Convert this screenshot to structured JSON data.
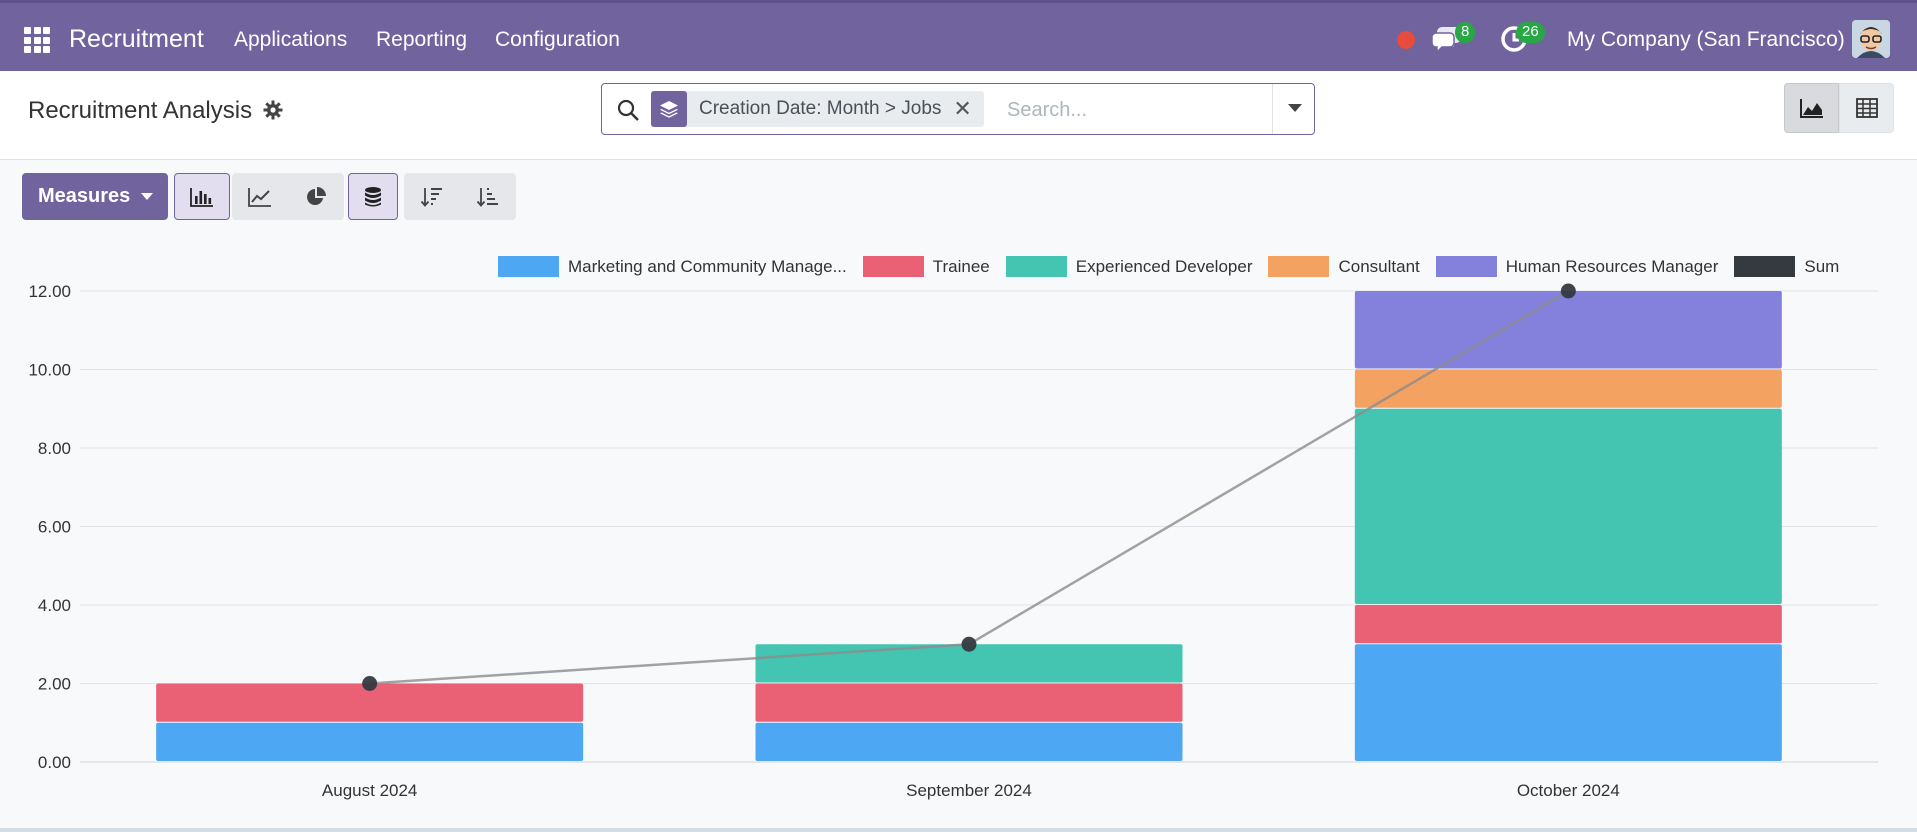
{
  "nav": {
    "brand": "Recruitment",
    "menu": [
      "Applications",
      "Reporting",
      "Configuration"
    ],
    "messages_count": "8",
    "activities_count": "26",
    "company": "My Company (San Francisco)"
  },
  "control": {
    "title": "Recruitment Analysis",
    "facet_label": "Creation Date: Month > Jobs",
    "search_placeholder": "Search..."
  },
  "toolbar": {
    "measures_label": "Measures"
  },
  "colors": {
    "nav": "#71639e",
    "marketing": "#4ea7f2",
    "trainee": "#ea6175",
    "developer": "#43c5b1",
    "consultant": "#f4a261",
    "hr_manager": "#8481dd",
    "sum": "#343a40"
  },
  "chart_data": {
    "type": "bar",
    "stacked": true,
    "categories": [
      "August 2024",
      "September 2024",
      "October 2024"
    ],
    "series": [
      {
        "name": "Marketing and Community Manage...",
        "values": [
          1,
          1,
          3
        ],
        "color": "#4ea7f2"
      },
      {
        "name": "Trainee",
        "values": [
          1,
          1,
          1
        ],
        "color": "#ea6175"
      },
      {
        "name": "Experienced Developer",
        "values": [
          0,
          1,
          5
        ],
        "color": "#43c5b1"
      },
      {
        "name": "Consultant",
        "values": [
          0,
          0,
          1
        ],
        "color": "#f4a261"
      },
      {
        "name": "Human Resources Manager",
        "values": [
          0,
          0,
          2
        ],
        "color": "#8481dd"
      }
    ],
    "sum_series": {
      "name": "Sum",
      "values": [
        2,
        3,
        12
      ],
      "color": "#343a40"
    },
    "y_ticks": [
      "0.00",
      "2.00",
      "4.00",
      "6.00",
      "8.00",
      "10.00",
      "12.00"
    ],
    "ylim": [
      0,
      12
    ],
    "grid": true,
    "legend": "top-right"
  }
}
